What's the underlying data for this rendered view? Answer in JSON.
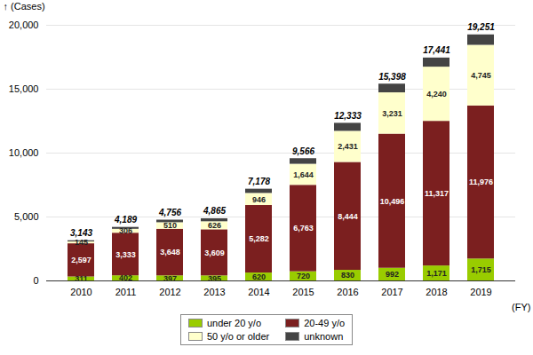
{
  "chart_data": {
    "type": "bar",
    "stacked": true,
    "categories": [
      "2010",
      "2011",
      "2012",
      "2013",
      "2014",
      "2015",
      "2016",
      "2017",
      "2018",
      "2019"
    ],
    "series": [
      {
        "name": "under 20 y/o",
        "color": "#99cc00",
        "data_labels": true,
        "values": [
          311,
          402,
          397,
          395,
          620,
          720,
          830,
          992,
          1171,
          1715
        ],
        "value_labels": [
          "311",
          "402",
          "397",
          "395",
          "620",
          "720",
          "830",
          "992",
          "1,171",
          "1,715"
        ]
      },
      {
        "name": "20-49 y/o",
        "color": "#7b1f1f",
        "data_labels": true,
        "values": [
          2597,
          3333,
          3648,
          3609,
          5282,
          6763,
          8444,
          10496,
          11317,
          11976
        ],
        "value_labels": [
          "2,597",
          "3,333",
          "3,648",
          "3,609",
          "5,282",
          "6,763",
          "8,444",
          "10,496",
          "11,317",
          "11,976"
        ]
      },
      {
        "name": "50 y/o or older",
        "color": "#ffffcc",
        "data_labels": true,
        "values": [
          145,
          306,
          510,
          626,
          946,
          1644,
          2431,
          3231,
          4240,
          4745
        ],
        "value_labels": [
          "145",
          "306",
          "510",
          "626",
          "946",
          "1,644",
          "2,431",
          "3,231",
          "4,240",
          "4,745"
        ]
      },
      {
        "name": "unknown",
        "color": "#444444",
        "data_labels": false,
        "values": [
          90,
          148,
          201,
          235,
          330,
          439,
          628,
          679,
          713,
          815
        ]
      }
    ],
    "totals": {
      "values": [
        3143,
        4189,
        4756,
        4865,
        7178,
        9566,
        12333,
        15398,
        17441,
        19251
      ],
      "value_labels": [
        "3,143",
        "4,189",
        "4,756",
        "4,865",
        "7,178",
        "9,566",
        "12,333",
        "15,398",
        "17,441",
        "19,251"
      ]
    },
    "ylabel": "(Cases)",
    "xlabel": "(FY)",
    "ylim": [
      0,
      20000
    ],
    "yticks": [
      0,
      {
        "value": 5000,
        "label": "5,000"
      },
      {
        "value": 10000,
        "label": "10,000"
      },
      {
        "value": 15000,
        "label": "15,000"
      },
      {
        "value": 20000,
        "label": "20,000"
      }
    ],
    "grid": true,
    "legend": "bottom"
  }
}
